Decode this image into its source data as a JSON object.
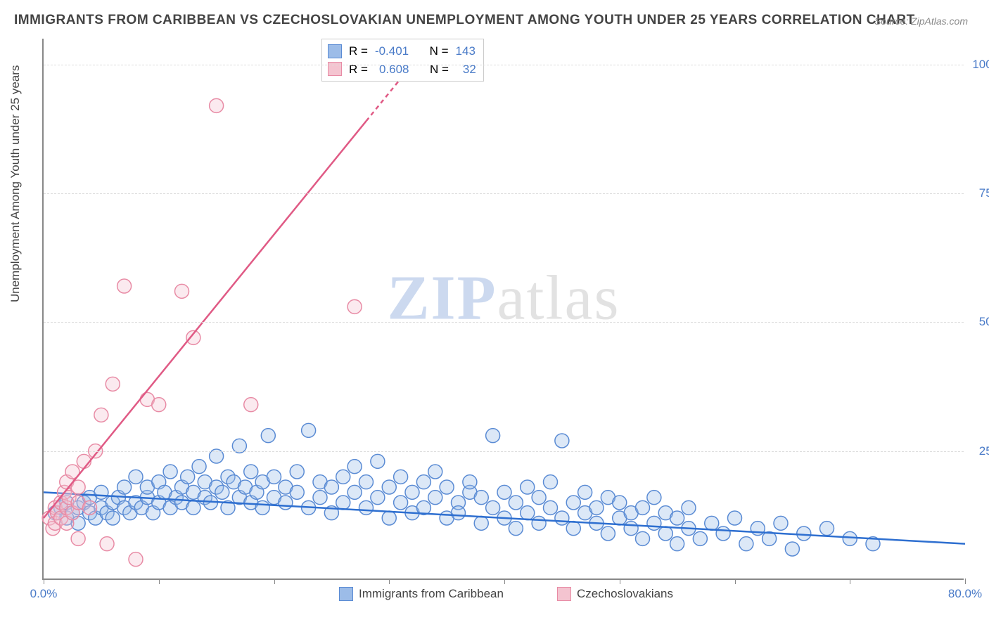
{
  "title": "IMMIGRANTS FROM CARIBBEAN VS CZECHOSLOVAKIAN UNEMPLOYMENT AMONG YOUTH UNDER 25 YEARS CORRELATION CHART",
  "source": "Source: ZipAtlas.com",
  "ylabel": "Unemployment Among Youth under 25 years",
  "watermark_zip": "ZIP",
  "watermark_atlas": "atlas",
  "chart": {
    "type": "scatter",
    "background_color": "#ffffff",
    "grid_color": "#dddddd",
    "axis_color": "#888888",
    "tick_label_color": "#4a7bc8",
    "label_fontsize": 17,
    "title_fontsize": 19,
    "xlim": [
      0,
      80
    ],
    "ylim": [
      0,
      105
    ],
    "xticks": [
      0,
      10,
      20,
      30,
      40,
      50,
      60,
      70,
      80
    ],
    "xtick_labels": {
      "0": "0.0%",
      "80": "80.0%"
    },
    "yticks": [
      25,
      50,
      75,
      100
    ],
    "ytick_labels": {
      "25": "25.0%",
      "50": "50.0%",
      "75": "75.0%",
      "100": "100.0%"
    },
    "marker_radius": 10,
    "marker_fill_opacity": 0.35,
    "marker_stroke_width": 1.5,
    "line_width": 2.5,
    "series": [
      {
        "name": "Immigrants from Caribbean",
        "color_fill": "#9cbce8",
        "color_stroke": "#5a8bd4",
        "line_color": "#2e6fd0",
        "R": "-0.401",
        "N": "143",
        "trend": {
          "x1": 0,
          "y1": 17,
          "x2": 80,
          "y2": 7
        },
        "points": [
          [
            1,
            13
          ],
          [
            1.5,
            14
          ],
          [
            2,
            12
          ],
          [
            2,
            15
          ],
          [
            2.5,
            13
          ],
          [
            3,
            14
          ],
          [
            3,
            11
          ],
          [
            3.5,
            15
          ],
          [
            4,
            13
          ],
          [
            4,
            16
          ],
          [
            4.5,
            12
          ],
          [
            5,
            14
          ],
          [
            5,
            17
          ],
          [
            5.5,
            13
          ],
          [
            6,
            15
          ],
          [
            6,
            12
          ],
          [
            6.5,
            16
          ],
          [
            7,
            14
          ],
          [
            7,
            18
          ],
          [
            7.5,
            13
          ],
          [
            8,
            15
          ],
          [
            8,
            20
          ],
          [
            8.5,
            14
          ],
          [
            9,
            16
          ],
          [
            9,
            18
          ],
          [
            9.5,
            13
          ],
          [
            10,
            15
          ],
          [
            10,
            19
          ],
          [
            10.5,
            17
          ],
          [
            11,
            14
          ],
          [
            11,
            21
          ],
          [
            11.5,
            16
          ],
          [
            12,
            18
          ],
          [
            12,
            15
          ],
          [
            12.5,
            20
          ],
          [
            13,
            17
          ],
          [
            13,
            14
          ],
          [
            13.5,
            22
          ],
          [
            14,
            16
          ],
          [
            14,
            19
          ],
          [
            14.5,
            15
          ],
          [
            15,
            18
          ],
          [
            15,
            24
          ],
          [
            15.5,
            17
          ],
          [
            16,
            20
          ],
          [
            16,
            14
          ],
          [
            16.5,
            19
          ],
          [
            17,
            16
          ],
          [
            17,
            26
          ],
          [
            17.5,
            18
          ],
          [
            18,
            15
          ],
          [
            18,
            21
          ],
          [
            18.5,
            17
          ],
          [
            19,
            19
          ],
          [
            19,
            14
          ],
          [
            19.5,
            28
          ],
          [
            20,
            16
          ],
          [
            20,
            20
          ],
          [
            21,
            18
          ],
          [
            21,
            15
          ],
          [
            22,
            17
          ],
          [
            22,
            21
          ],
          [
            23,
            14
          ],
          [
            23,
            29
          ],
          [
            24,
            19
          ],
          [
            24,
            16
          ],
          [
            25,
            18
          ],
          [
            25,
            13
          ],
          [
            26,
            20
          ],
          [
            26,
            15
          ],
          [
            27,
            17
          ],
          [
            27,
            22
          ],
          [
            28,
            14
          ],
          [
            28,
            19
          ],
          [
            29,
            16
          ],
          [
            29,
            23
          ],
          [
            30,
            12
          ],
          [
            30,
            18
          ],
          [
            31,
            15
          ],
          [
            31,
            20
          ],
          [
            32,
            13
          ],
          [
            32,
            17
          ],
          [
            33,
            19
          ],
          [
            33,
            14
          ],
          [
            34,
            16
          ],
          [
            34,
            21
          ],
          [
            35,
            12
          ],
          [
            35,
            18
          ],
          [
            36,
            15
          ],
          [
            36,
            13
          ],
          [
            37,
            17
          ],
          [
            37,
            19
          ],
          [
            38,
            11
          ],
          [
            38,
            16
          ],
          [
            39,
            14
          ],
          [
            39,
            28
          ],
          [
            40,
            12
          ],
          [
            40,
            17
          ],
          [
            41,
            15
          ],
          [
            41,
            10
          ],
          [
            42,
            18
          ],
          [
            42,
            13
          ],
          [
            43,
            16
          ],
          [
            43,
            11
          ],
          [
            44,
            14
          ],
          [
            44,
            19
          ],
          [
            45,
            12
          ],
          [
            45,
            27
          ],
          [
            46,
            10
          ],
          [
            46,
            15
          ],
          [
            47,
            13
          ],
          [
            47,
            17
          ],
          [
            48,
            11
          ],
          [
            48,
            14
          ],
          [
            49,
            16
          ],
          [
            49,
            9
          ],
          [
            50,
            12
          ],
          [
            50,
            15
          ],
          [
            51,
            10
          ],
          [
            51,
            13
          ],
          [
            52,
            14
          ],
          [
            52,
            8
          ],
          [
            53,
            11
          ],
          [
            53,
            16
          ],
          [
            54,
            9
          ],
          [
            54,
            13
          ],
          [
            55,
            12
          ],
          [
            55,
            7
          ],
          [
            56,
            14
          ],
          [
            56,
            10
          ],
          [
            57,
            8
          ],
          [
            58,
            11
          ],
          [
            59,
            9
          ],
          [
            60,
            12
          ],
          [
            61,
            7
          ],
          [
            62,
            10
          ],
          [
            63,
            8
          ],
          [
            64,
            11
          ],
          [
            65,
            6
          ],
          [
            66,
            9
          ],
          [
            68,
            10
          ],
          [
            70,
            8
          ],
          [
            72,
            7
          ]
        ]
      },
      {
        "name": "Czechoslovakians",
        "color_fill": "#f4c4d0",
        "color_stroke": "#e88ba5",
        "line_color": "#e05a85",
        "R": "0.608",
        "N": "32",
        "trend": {
          "x1": 0,
          "y1": 12,
          "x2": 32,
          "y2": 100
        },
        "trend_dashed_from_x": 28,
        "points": [
          [
            0.5,
            12
          ],
          [
            0.8,
            10
          ],
          [
            1,
            14
          ],
          [
            1,
            11
          ],
          [
            1.2,
            13
          ],
          [
            1.5,
            15
          ],
          [
            1.5,
            12
          ],
          [
            1.8,
            17
          ],
          [
            2,
            14
          ],
          [
            2,
            19
          ],
          [
            2,
            11
          ],
          [
            2.2,
            16
          ],
          [
            2.5,
            13
          ],
          [
            2.5,
            21
          ],
          [
            3,
            15
          ],
          [
            3,
            18
          ],
          [
            3,
            8
          ],
          [
            3.5,
            23
          ],
          [
            4,
            14
          ],
          [
            4.5,
            25
          ],
          [
            5,
            32
          ],
          [
            5.5,
            7
          ],
          [
            6,
            38
          ],
          [
            7,
            57
          ],
          [
            8,
            4
          ],
          [
            9,
            35
          ],
          [
            10,
            34
          ],
          [
            12,
            56
          ],
          [
            13,
            47
          ],
          [
            15,
            92
          ],
          [
            18,
            34
          ],
          [
            27,
            53
          ]
        ]
      }
    ]
  },
  "legend": {
    "series1_label": "Immigrants from Caribbean",
    "series2_label": "Czechoslovakians"
  },
  "stats_labels": {
    "R": "R =",
    "N": "N ="
  }
}
